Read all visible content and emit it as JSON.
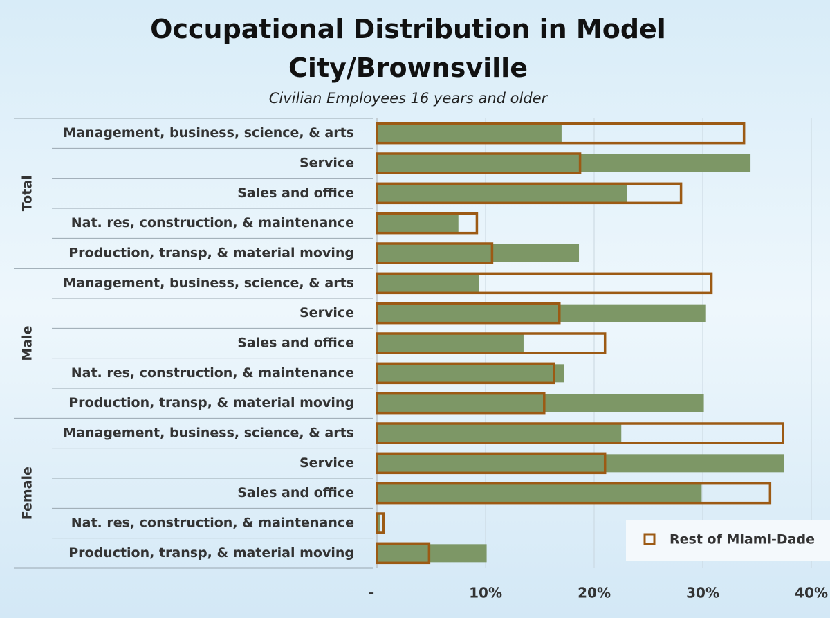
{
  "chart_data": {
    "type": "bar",
    "orientation": "horizontal",
    "title": "Occupational Distribution in Model City/Brownsville",
    "subtitle": "Civilian Employees 16 years and older",
    "groups": [
      {
        "name": "Total",
        "categories": [
          "Management, business, science, & arts",
          "Service",
          "Sales and office",
          "Nat. res, construction, & maintenance",
          "Production, transp, & material moving"
        ]
      },
      {
        "name": "Male",
        "categories": [
          "Management, business, science, & arts",
          "Service",
          "Sales and office",
          "Nat. res, construction, & maintenance",
          "Production, transp, & material moving"
        ]
      },
      {
        "name": "Female",
        "categories": [
          "Management, business, science, & arts",
          "Service",
          "Sales and office",
          "Nat. res, construction, & maintenance",
          "Production, transp, & material moving"
        ]
      }
    ],
    "series": [
      {
        "color": "#7d9766",
        "style": "filled",
        "values": [
          17.0,
          34.4,
          23.0,
          7.5,
          18.6,
          9.4,
          30.3,
          13.5,
          17.2,
          30.1,
          22.5,
          37.5,
          29.9,
          0.3,
          10.1
        ]
      },
      {
        "name": "Rest of Miami-Dade",
        "color": "#9c5a14",
        "style": "outline",
        "values": [
          33.8,
          18.7,
          28.0,
          9.2,
          10.6,
          30.8,
          16.8,
          21.0,
          16.3,
          15.4,
          37.4,
          21.0,
          36.2,
          0.6,
          4.8
        ]
      }
    ],
    "xlim": [
      0,
      40
    ],
    "xticks": [
      {
        "value": 0,
        "label": "-"
      },
      {
        "value": 10,
        "label": "10%"
      },
      {
        "value": 20,
        "label": "20%"
      },
      {
        "value": 30,
        "label": "30%"
      },
      {
        "value": 40,
        "label": "40%"
      }
    ],
    "grid": true,
    "legend": "bottom-right"
  }
}
